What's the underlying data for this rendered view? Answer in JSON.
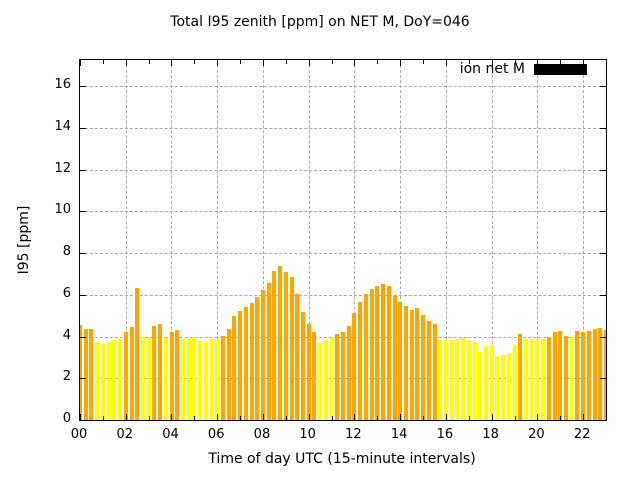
{
  "chart_data": {
    "type": "bar",
    "title": "Total I95 zenith [ppm] on NET M, DoY=046",
    "xlabel": "Time of day UTC (15-minute intervals)",
    "ylabel": "I95 [ppm]",
    "interval_minutes": 15,
    "xlim_hours": [
      0,
      23
    ],
    "ylim": [
      0,
      17.25
    ],
    "grid": true,
    "x_major_tick_labels": [
      "00",
      "02",
      "04",
      "06",
      "08",
      "10",
      "12",
      "14",
      "16",
      "18",
      "20",
      "22"
    ],
    "x_major_tick_hours": [
      0,
      2,
      4,
      6,
      8,
      10,
      12,
      14,
      16,
      18,
      20,
      22
    ],
    "x_minor_tick_hours": [
      1,
      3,
      5,
      7,
      9,
      11,
      13,
      15,
      17,
      19,
      21,
      23
    ],
    "y_tick_values": [
      0,
      2,
      4,
      6,
      8,
      10,
      12,
      14,
      16
    ],
    "legend": {
      "label": "ion net M",
      "swatch_color": "#000000",
      "position": "top-right"
    },
    "colors": {
      "orange": "#FFA500",
      "yellow": "#FFFF00"
    },
    "bars": [
      {
        "t": "00:00",
        "v": 4.55,
        "c": "orange"
      },
      {
        "t": "00:15",
        "v": 4.37,
        "c": "orange"
      },
      {
        "t": "00:30",
        "v": 4.37,
        "c": "orange"
      },
      {
        "t": "00:45",
        "v": 3.74,
        "c": "yellow"
      },
      {
        "t": "01:00",
        "v": 3.64,
        "c": "yellow"
      },
      {
        "t": "01:15",
        "v": 3.74,
        "c": "yellow"
      },
      {
        "t": "01:30",
        "v": 3.83,
        "c": "yellow"
      },
      {
        "t": "01:45",
        "v": 3.88,
        "c": "yellow"
      },
      {
        "t": "02:00",
        "v": 4.21,
        "c": "orange"
      },
      {
        "t": "02:15",
        "v": 4.45,
        "c": "orange"
      },
      {
        "t": "02:30",
        "v": 6.34,
        "c": "orange"
      },
      {
        "t": "02:45",
        "v": 4.0,
        "c": "yellow"
      },
      {
        "t": "03:00",
        "v": 3.95,
        "c": "yellow"
      },
      {
        "t": "03:15",
        "v": 4.5,
        "c": "orange"
      },
      {
        "t": "03:30",
        "v": 4.6,
        "c": "orange"
      },
      {
        "t": "03:45",
        "v": 3.95,
        "c": "yellow"
      },
      {
        "t": "04:00",
        "v": 4.2,
        "c": "orange"
      },
      {
        "t": "04:15",
        "v": 4.3,
        "c": "orange"
      },
      {
        "t": "04:30",
        "v": 3.88,
        "c": "yellow"
      },
      {
        "t": "04:45",
        "v": 3.88,
        "c": "yellow"
      },
      {
        "t": "05:00",
        "v": 3.98,
        "c": "yellow"
      },
      {
        "t": "05:15",
        "v": 3.79,
        "c": "yellow"
      },
      {
        "t": "05:30",
        "v": 3.74,
        "c": "yellow"
      },
      {
        "t": "05:45",
        "v": 3.88,
        "c": "yellow"
      },
      {
        "t": "06:00",
        "v": 3.88,
        "c": "yellow"
      },
      {
        "t": "06:15",
        "v": 4.02,
        "c": "orange"
      },
      {
        "t": "06:30",
        "v": 4.36,
        "c": "orange"
      },
      {
        "t": "06:45",
        "v": 4.98,
        "c": "orange"
      },
      {
        "t": "07:00",
        "v": 5.22,
        "c": "orange"
      },
      {
        "t": "07:15",
        "v": 5.41,
        "c": "orange"
      },
      {
        "t": "07:30",
        "v": 5.6,
        "c": "orange"
      },
      {
        "t": "07:45",
        "v": 5.89,
        "c": "orange"
      },
      {
        "t": "08:00",
        "v": 6.21,
        "c": "orange"
      },
      {
        "t": "08:15",
        "v": 6.56,
        "c": "orange"
      },
      {
        "t": "08:30",
        "v": 7.14,
        "c": "orange"
      },
      {
        "t": "08:45",
        "v": 7.38,
        "c": "orange"
      },
      {
        "t": "09:00",
        "v": 7.09,
        "c": "orange"
      },
      {
        "t": "09:15",
        "v": 6.85,
        "c": "orange"
      },
      {
        "t": "09:30",
        "v": 6.02,
        "c": "orange"
      },
      {
        "t": "09:45",
        "v": 5.17,
        "c": "orange"
      },
      {
        "t": "10:00",
        "v": 4.6,
        "c": "orange"
      },
      {
        "t": "10:15",
        "v": 4.21,
        "c": "orange"
      },
      {
        "t": "10:30",
        "v": 3.7,
        "c": "yellow"
      },
      {
        "t": "10:45",
        "v": 3.85,
        "c": "yellow"
      },
      {
        "t": "11:00",
        "v": 3.94,
        "c": "yellow"
      },
      {
        "t": "11:15",
        "v": 4.1,
        "c": "orange"
      },
      {
        "t": "11:30",
        "v": 4.23,
        "c": "orange"
      },
      {
        "t": "11:45",
        "v": 4.5,
        "c": "orange"
      },
      {
        "t": "12:00",
        "v": 5.12,
        "c": "orange"
      },
      {
        "t": "12:15",
        "v": 5.65,
        "c": "orange"
      },
      {
        "t": "12:30",
        "v": 6.03,
        "c": "orange"
      },
      {
        "t": "12:45",
        "v": 6.27,
        "c": "orange"
      },
      {
        "t": "13:00",
        "v": 6.42,
        "c": "orange"
      },
      {
        "t": "13:15",
        "v": 6.51,
        "c": "orange"
      },
      {
        "t": "13:30",
        "v": 6.42,
        "c": "orange"
      },
      {
        "t": "13:45",
        "v": 5.94,
        "c": "orange"
      },
      {
        "t": "14:00",
        "v": 5.65,
        "c": "orange"
      },
      {
        "t": "14:15",
        "v": 5.46,
        "c": "orange"
      },
      {
        "t": "14:30",
        "v": 5.27,
        "c": "orange"
      },
      {
        "t": "14:45",
        "v": 5.36,
        "c": "orange"
      },
      {
        "t": "15:00",
        "v": 5.03,
        "c": "orange"
      },
      {
        "t": "15:15",
        "v": 4.74,
        "c": "orange"
      },
      {
        "t": "15:30",
        "v": 4.6,
        "c": "orange"
      },
      {
        "t": "15:45",
        "v": 3.82,
        "c": "yellow"
      },
      {
        "t": "16:00",
        "v": 3.82,
        "c": "yellow"
      },
      {
        "t": "16:15",
        "v": 3.82,
        "c": "yellow"
      },
      {
        "t": "16:30",
        "v": 3.87,
        "c": "yellow"
      },
      {
        "t": "16:45",
        "v": 3.91,
        "c": "yellow"
      },
      {
        "t": "17:00",
        "v": 3.82,
        "c": "yellow"
      },
      {
        "t": "17:15",
        "v": 3.75,
        "c": "yellow"
      },
      {
        "t": "17:30",
        "v": 3.26,
        "c": "yellow"
      },
      {
        "t": "17:45",
        "v": 3.55,
        "c": "yellow"
      },
      {
        "t": "18:00",
        "v": 3.6,
        "c": "yellow"
      },
      {
        "t": "18:15",
        "v": 3.07,
        "c": "yellow"
      },
      {
        "t": "18:30",
        "v": 3.11,
        "c": "yellow"
      },
      {
        "t": "18:45",
        "v": 3.22,
        "c": "yellow"
      },
      {
        "t": "19:00",
        "v": 3.59,
        "c": "yellow"
      },
      {
        "t": "19:15",
        "v": 4.13,
        "c": "orange"
      },
      {
        "t": "19:30",
        "v": 3.86,
        "c": "yellow"
      },
      {
        "t": "19:45",
        "v": 3.86,
        "c": "yellow"
      },
      {
        "t": "20:00",
        "v": 3.86,
        "c": "yellow"
      },
      {
        "t": "20:15",
        "v": 3.88,
        "c": "yellow"
      },
      {
        "t": "20:30",
        "v": 3.98,
        "c": "orange"
      },
      {
        "t": "20:45",
        "v": 4.21,
        "c": "orange"
      },
      {
        "t": "21:00",
        "v": 4.26,
        "c": "orange"
      },
      {
        "t": "21:15",
        "v": 4.02,
        "c": "orange"
      },
      {
        "t": "21:30",
        "v": 3.98,
        "c": "yellow"
      },
      {
        "t": "21:45",
        "v": 4.26,
        "c": "orange"
      },
      {
        "t": "22:00",
        "v": 4.21,
        "c": "orange"
      },
      {
        "t": "22:15",
        "v": 4.26,
        "c": "orange"
      },
      {
        "t": "22:30",
        "v": 4.36,
        "c": "orange"
      },
      {
        "t": "22:45",
        "v": 4.41,
        "c": "orange"
      },
      {
        "t": "23:00",
        "v": 4.3,
        "c": "orange"
      }
    ]
  }
}
